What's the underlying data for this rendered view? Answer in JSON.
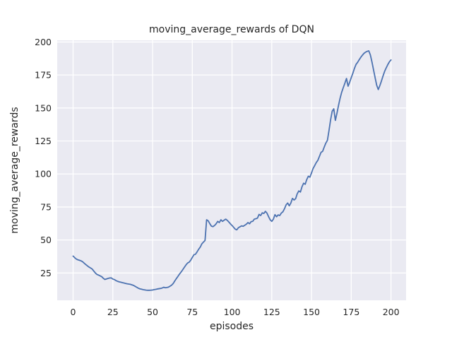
{
  "chart_data": {
    "type": "line",
    "title": "moving_average_rewards of DQN",
    "xlabel": "episodes",
    "ylabel": "moving_average_rewards",
    "style": "seaborn-darkgrid",
    "grid": true,
    "legend": "none",
    "plot_bg_color": "#eaeaf2",
    "grid_color": "#ffffff",
    "line_color": "#4c72b0",
    "text_color": "#262626",
    "x_ticks": [
      0,
      25,
      50,
      75,
      100,
      125,
      150,
      175,
      200
    ],
    "y_ticks": [
      25,
      50,
      75,
      100,
      125,
      150,
      175,
      200
    ],
    "xlim": [
      -10,
      209.5
    ],
    "ylim": [
      4.3,
      201.3
    ],
    "x": [
      0,
      1,
      2,
      3,
      4,
      5,
      6,
      7,
      8,
      9,
      10,
      11,
      12,
      13,
      14,
      15,
      16,
      17,
      18,
      19,
      20,
      21,
      22,
      23,
      24,
      25,
      26,
      27,
      28,
      29,
      30,
      31,
      32,
      33,
      34,
      35,
      36,
      37,
      38,
      39,
      40,
      41,
      42,
      43,
      44,
      45,
      46,
      47,
      48,
      49,
      50,
      51,
      52,
      53,
      54,
      55,
      56,
      57,
      58,
      59,
      60,
      61,
      62,
      63,
      64,
      65,
      66,
      67,
      68,
      69,
      70,
      71,
      72,
      73,
      74,
      75,
      76,
      77,
      78,
      79,
      80,
      81,
      82,
      83,
      84,
      85,
      86,
      87,
      88,
      89,
      90,
      91,
      92,
      93,
      94,
      95,
      96,
      97,
      98,
      99,
      100,
      101,
      102,
      103,
      104,
      105,
      106,
      107,
      108,
      109,
      110,
      111,
      112,
      113,
      114,
      115,
      116,
      117,
      118,
      119,
      120,
      121,
      122,
      123,
      124,
      125,
      126,
      127,
      128,
      129,
      130,
      131,
      132,
      133,
      134,
      135,
      136,
      137,
      138,
      139,
      140,
      141,
      142,
      143,
      144,
      145,
      146,
      147,
      148,
      149,
      150,
      151,
      152,
      153,
      154,
      155,
      156,
      157,
      158,
      159,
      160,
      161,
      162,
      163,
      164,
      165,
      166,
      167,
      168,
      169,
      170,
      171,
      172,
      173,
      174,
      175,
      176,
      177,
      178,
      179,
      180,
      181,
      182,
      183,
      184,
      185,
      186,
      187,
      188,
      189,
      190,
      191,
      192,
      193,
      194,
      195,
      196,
      197,
      198,
      199,
      200
    ],
    "series": [
      {
        "name": "DQN moving_average_rewards",
        "values": [
          37.8,
          36.6,
          35.6,
          35.0,
          34.6,
          34.2,
          33.5,
          32.4,
          31.4,
          30.4,
          29.5,
          28.8,
          28.0,
          26.5,
          25.0,
          23.9,
          23.4,
          22.8,
          22.2,
          21.0,
          20.1,
          20.5,
          20.9,
          21.2,
          21.3,
          20.4,
          20.0,
          19.2,
          18.7,
          18.3,
          18.0,
          17.7,
          17.4,
          17.1,
          16.8,
          16.6,
          16.4,
          16.0,
          15.6,
          14.9,
          14.2,
          13.5,
          13.0,
          12.7,
          12.4,
          12.2,
          12.0,
          11.9,
          11.9,
          12.0,
          12.1,
          12.4,
          12.6,
          12.9,
          13.1,
          13.3,
          13.6,
          14.2,
          13.8,
          14.0,
          14.3,
          15.0,
          15.8,
          17.1,
          19.0,
          20.8,
          22.5,
          24.3,
          25.8,
          27.5,
          29.3,
          31.1,
          32.5,
          33.2,
          34.7,
          36.8,
          38.8,
          39.2,
          41.0,
          43.0,
          44.6,
          47.1,
          48.4,
          49.6,
          65.3,
          64.5,
          62.4,
          60.5,
          60.1,
          61.0,
          62.3,
          64.1,
          63.2,
          65.3,
          64.1,
          65.0,
          65.8,
          64.9,
          63.6,
          62.2,
          61.0,
          59.6,
          58.2,
          57.7,
          59.3,
          60.0,
          60.7,
          60.4,
          61.2,
          62.0,
          63.2,
          62.3,
          63.9,
          64.1,
          65.8,
          66.1,
          66.6,
          69.4,
          68.5,
          70.6,
          70.1,
          71.7,
          70.3,
          67.6,
          65.3,
          64.1,
          65.8,
          69.2,
          67.6,
          69.0,
          68.5,
          70.4,
          71.4,
          73.7,
          76.6,
          78.0,
          75.9,
          78.0,
          81.5,
          80.3,
          81.3,
          85.0,
          87.2,
          86.3,
          90.3,
          93.0,
          92.2,
          95.8,
          98.3,
          97.6,
          100.8,
          104.2,
          106.4,
          108.7,
          110.4,
          113.4,
          116.4,
          117.2,
          120.4,
          123.4,
          125.5,
          133.0,
          141.0,
          147.5,
          149.4,
          140.6,
          146.0,
          152.0,
          157.5,
          162.0,
          165.5,
          168.8,
          172.4,
          166.5,
          169.5,
          173.0,
          176.3,
          180.0,
          183.0,
          184.6,
          186.6,
          188.4,
          190.0,
          191.4,
          192.3,
          192.9,
          193.3,
          190.3,
          185.0,
          179.0,
          173.0,
          167.3,
          164.0,
          167.0,
          170.5,
          174.3,
          177.8,
          180.4,
          182.9,
          185.0,
          186.4
        ]
      }
    ]
  }
}
